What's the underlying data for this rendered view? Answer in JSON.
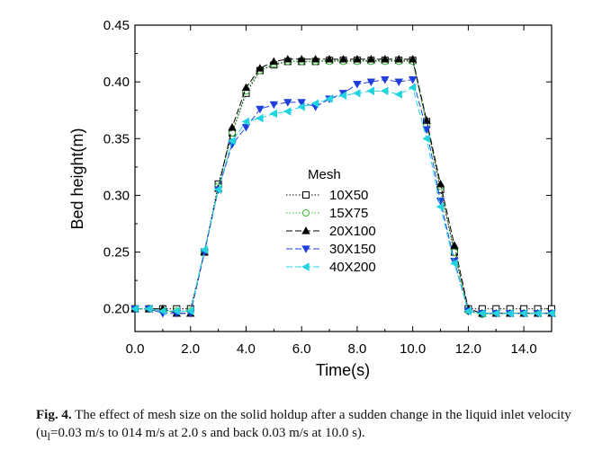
{
  "chart_data": {
    "type": "scatter",
    "title": "",
    "xlabel": "Time(s)",
    "ylabel": "Bed height(m)",
    "xlim": [
      0,
      15
    ],
    "ylim": [
      0.18,
      0.45
    ],
    "xticks": [
      0,
      2,
      4,
      6,
      8,
      10,
      12,
      14
    ],
    "xtick_labels": [
      "0.0",
      "2.0",
      "4.0",
      "6.0",
      "8.0",
      "10.0",
      "12.0",
      "14.0"
    ],
    "yticks": [
      0.2,
      0.25,
      0.3,
      0.35,
      0.4,
      0.45
    ],
    "ytick_labels": [
      "0.20",
      "0.25",
      "0.30",
      "0.35",
      "0.40",
      "0.45"
    ],
    "legend_title": "Mesh",
    "legend_position": "center",
    "series": [
      {
        "name": "10X50",
        "color": "#000000",
        "marker": "square-open",
        "line": "dotted",
        "x": [
          0,
          0.5,
          1.0,
          1.5,
          2.0,
          2.5,
          3.0,
          3.5,
          4.0,
          4.5,
          5.0,
          5.5,
          6.0,
          6.5,
          7.0,
          7.5,
          8.0,
          8.5,
          9.0,
          9.5,
          10.0,
          10.5,
          11.0,
          11.5,
          12.0,
          12.5,
          13.0,
          13.5,
          14.0,
          14.5,
          15.0
        ],
        "y": [
          0.2,
          0.2,
          0.2,
          0.2,
          0.2,
          0.25,
          0.31,
          0.355,
          0.39,
          0.41,
          0.415,
          0.418,
          0.418,
          0.418,
          0.419,
          0.419,
          0.419,
          0.419,
          0.419,
          0.419,
          0.419,
          0.365,
          0.305,
          0.25,
          0.2,
          0.2,
          0.2,
          0.2,
          0.2,
          0.2,
          0.2
        ]
      },
      {
        "name": "15X75",
        "color": "#33bb33",
        "marker": "circle-open",
        "line": "dotted",
        "x": [
          0,
          0.5,
          1.0,
          1.5,
          2.0,
          2.5,
          3.0,
          3.5,
          4.0,
          4.5,
          5.0,
          5.5,
          6.0,
          6.5,
          7.0,
          7.5,
          8.0,
          8.5,
          9.0,
          9.5,
          10.0,
          10.5,
          11.0,
          11.5,
          12.0,
          12.5,
          13.0,
          13.5,
          14.0,
          14.5,
          15.0
        ],
        "y": [
          0.2,
          0.2,
          0.198,
          0.198,
          0.198,
          0.25,
          0.308,
          0.355,
          0.392,
          0.41,
          0.416,
          0.418,
          0.418,
          0.418,
          0.418,
          0.418,
          0.418,
          0.418,
          0.418,
          0.418,
          0.418,
          0.362,
          0.308,
          0.25,
          0.198,
          0.195,
          0.196,
          0.196,
          0.196,
          0.196,
          0.196
        ]
      },
      {
        "name": "20X100",
        "color": "#000000",
        "marker": "triangle-up-filled",
        "line": "dashed",
        "x": [
          0,
          0.5,
          1.0,
          1.5,
          2.0,
          2.5,
          3.0,
          3.5,
          4.0,
          4.5,
          5.0,
          5.5,
          6.0,
          6.5,
          7.0,
          7.5,
          8.0,
          8.5,
          9.0,
          9.5,
          10.0,
          10.5,
          11.0,
          11.5,
          12.0,
          12.5,
          13.0,
          13.5,
          14.0,
          14.5,
          15.0
        ],
        "y": [
          0.2,
          0.2,
          0.2,
          0.196,
          0.196,
          0.25,
          0.306,
          0.36,
          0.395,
          0.412,
          0.418,
          0.42,
          0.42,
          0.42,
          0.42,
          0.42,
          0.42,
          0.42,
          0.42,
          0.42,
          0.42,
          0.366,
          0.31,
          0.256,
          0.2,
          0.196,
          0.196,
          0.196,
          0.196,
          0.196,
          0.196
        ]
      },
      {
        "name": "30X150",
        "color": "#1f3fdc",
        "marker": "triangle-down-filled",
        "line": "dashed",
        "x": [
          0,
          0.5,
          1.0,
          1.5,
          2.0,
          2.5,
          3.0,
          3.5,
          4.0,
          4.5,
          5.0,
          5.5,
          6.0,
          6.5,
          7.0,
          7.5,
          8.0,
          8.5,
          9.0,
          9.5,
          10.0,
          10.5,
          11.0,
          11.5,
          12.0,
          12.5,
          13.0,
          13.5,
          14.0,
          14.5,
          15.0
        ],
        "y": [
          0.2,
          0.2,
          0.196,
          0.196,
          0.196,
          0.25,
          0.305,
          0.345,
          0.36,
          0.376,
          0.38,
          0.382,
          0.382,
          0.378,
          0.385,
          0.39,
          0.398,
          0.4,
          0.402,
          0.4,
          0.402,
          0.358,
          0.295,
          0.242,
          0.198,
          0.196,
          0.196,
          0.196,
          0.196,
          0.196,
          0.196
        ]
      },
      {
        "name": "40X200",
        "color": "#22d4e0",
        "marker": "triangle-left-filled",
        "line": "dashed",
        "x": [
          0,
          0.5,
          1.0,
          1.5,
          2.0,
          2.5,
          3.0,
          3.5,
          4.0,
          4.5,
          5.0,
          5.5,
          6.0,
          6.5,
          7.0,
          7.5,
          8.0,
          8.5,
          9.0,
          9.5,
          10.0,
          10.5,
          11.0,
          11.5,
          12.0,
          12.5,
          13.0,
          13.5,
          14.0,
          14.5,
          15.0
        ],
        "y": [
          0.2,
          0.2,
          0.198,
          0.198,
          0.198,
          0.252,
          0.305,
          0.348,
          0.365,
          0.368,
          0.372,
          0.374,
          0.378,
          0.381,
          0.385,
          0.388,
          0.39,
          0.392,
          0.392,
          0.389,
          0.395,
          0.35,
          0.29,
          0.24,
          0.198,
          0.196,
          0.196,
          0.196,
          0.196,
          0.196,
          0.196
        ]
      }
    ]
  },
  "caption": {
    "label": "Fig. 4.",
    "text": "The effect of mesh size on the solid holdup after a sudden change in the liquid inlet velocity (u",
    "subscript": "l",
    "text_after": "=0.03 m/s to 014 m/s at 2.0 s and back 0.03 m/s at 10.0 s)."
  }
}
